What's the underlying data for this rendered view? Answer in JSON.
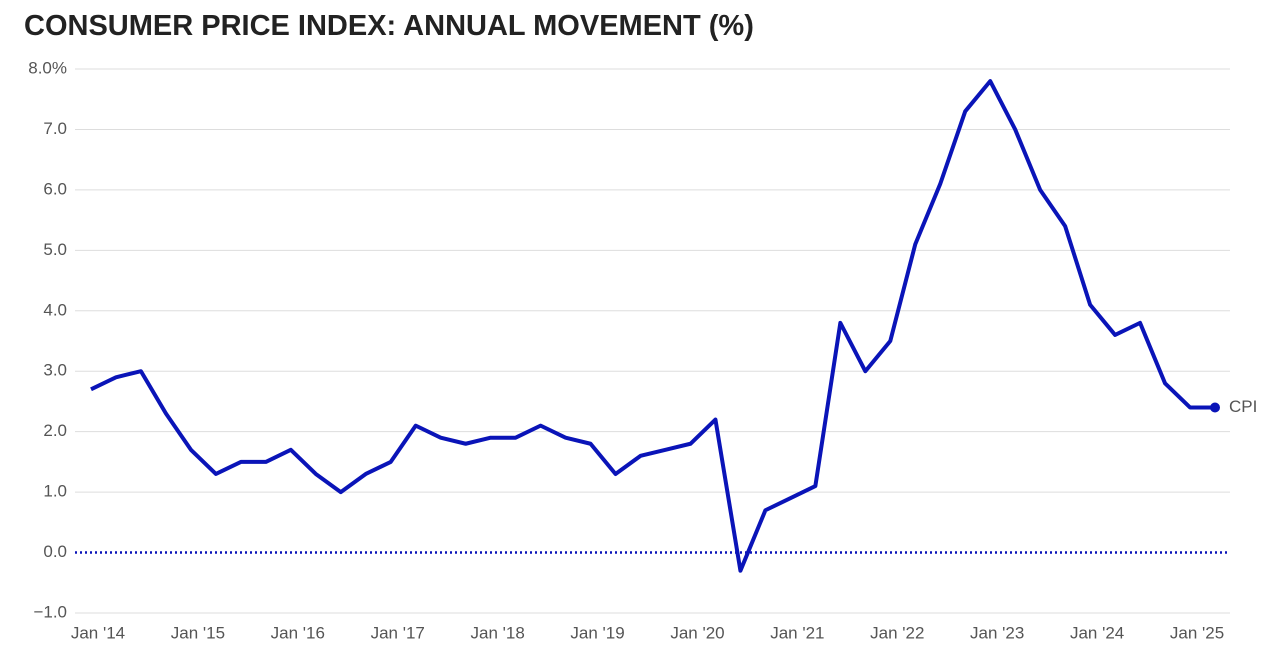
{
  "chart_data": {
    "type": "line",
    "title": "CONSUMER PRICE INDEX: ANNUAL MOVEMENT (%)",
    "categories": [
      "Jan '14",
      null,
      null,
      null,
      "Jan '15",
      null,
      null,
      null,
      "Jan '16",
      null,
      null,
      null,
      "Jan '17",
      null,
      null,
      null,
      "Jan '18",
      null,
      null,
      null,
      "Jan '19",
      null,
      null,
      null,
      "Jan '20",
      null,
      null,
      null,
      "Jan '21",
      null,
      null,
      null,
      "Jan '22",
      null,
      null,
      null,
      "Jan '23",
      null,
      null,
      null,
      "Jan '24",
      null,
      null,
      null,
      "Jan '25",
      null
    ],
    "series": [
      {
        "name": "CPI",
        "color": "#0a14b8",
        "values": [
          2.7,
          2.9,
          3.0,
          2.3,
          1.7,
          1.3,
          1.5,
          1.5,
          1.7,
          1.3,
          1.0,
          1.3,
          1.5,
          2.1,
          1.9,
          1.8,
          1.9,
          1.9,
          2.1,
          1.9,
          1.8,
          1.3,
          1.6,
          1.7,
          1.8,
          2.2,
          -0.3,
          0.7,
          0.9,
          1.1,
          3.8,
          3.0,
          3.5,
          5.1,
          6.1,
          7.3,
          7.8,
          7.0,
          6.0,
          5.4,
          4.1,
          3.6,
          3.8,
          2.8,
          2.4,
          2.4
        ]
      }
    ],
    "ylim": [
      -1,
      8
    ],
    "yticks": [
      {
        "value": 8,
        "label": "8.0%"
      },
      {
        "value": 7,
        "label": "7.0"
      },
      {
        "value": 6,
        "label": "6.0"
      },
      {
        "value": 5,
        "label": "5.0"
      },
      {
        "value": 4,
        "label": "4.0"
      },
      {
        "value": 3,
        "label": "3.0"
      },
      {
        "value": 2,
        "label": "2.0"
      },
      {
        "value": 1,
        "label": "1.0"
      },
      {
        "value": 0,
        "label": "0.0"
      },
      {
        "value": -1,
        "label": "−1.0"
      }
    ],
    "grid": true
  }
}
